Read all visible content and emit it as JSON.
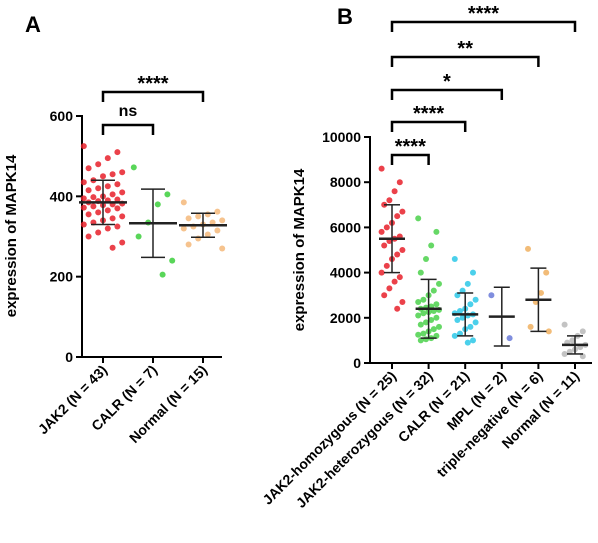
{
  "chart_data": [
    {
      "type": "dotplot",
      "panel_label": "A",
      "y_label": "expression of MAPK14",
      "ylim": [
        0,
        600
      ],
      "yticks": [
        0,
        200,
        400,
        600
      ],
      "series": [
        {
          "name": "JAK2 (N = 43)",
          "color": "#e8202a",
          "mean": 385,
          "sd": 55,
          "values": [
            525,
            510,
            495,
            480,
            470,
            460,
            455,
            450,
            440,
            435,
            430,
            425,
            420,
            415,
            410,
            405,
            400,
            398,
            395,
            392,
            390,
            388,
            385,
            382,
            380,
            378,
            375,
            372,
            370,
            365,
            360,
            355,
            350,
            345,
            340,
            335,
            330,
            325,
            320,
            310,
            300,
            285,
            272
          ]
        },
        {
          "name": "CALR (N = 7)",
          "color": "#3ccf3c",
          "mean": 333,
          "sd": 85,
          "values": [
            472,
            405,
            380,
            335,
            300,
            240,
            205
          ]
        },
        {
          "name": "Normal (N = 15)",
          "color": "#f5b97a",
          "mean": 328,
          "sd": 30,
          "values": [
            385,
            362,
            355,
            350,
            345,
            340,
            335,
            330,
            325,
            320,
            315,
            305,
            295,
            280,
            270
          ]
        }
      ],
      "comparisons": [
        {
          "from": "JAK2 (N = 43)",
          "to": "CALR (N = 7)",
          "label": "ns"
        },
        {
          "from": "JAK2 (N = 43)",
          "to": "Normal (N = 15)",
          "label": "****"
        }
      ]
    },
    {
      "type": "dotplot",
      "panel_label": "B",
      "y_label": "expression of MAPK14",
      "ylim": [
        0,
        10000
      ],
      "yticks": [
        0,
        2000,
        4000,
        6000,
        8000,
        10000
      ],
      "series": [
        {
          "name": "JAK2-homozygous (N = 25)",
          "color": "#e8202a",
          "mean": 5500,
          "sd": 1500,
          "values": [
            8600,
            8000,
            7600,
            7200,
            7000,
            6700,
            6500,
            6200,
            6000,
            5800,
            5600,
            5500,
            5400,
            5200,
            5000,
            4800,
            4600,
            4300,
            4000,
            3800,
            3600,
            3300,
            3000,
            2700,
            2400
          ]
        },
        {
          "name": "JAK2-heterozygous (N = 32)",
          "color": "#4bd14b",
          "mean": 2400,
          "sd": 1300,
          "values": [
            6400,
            5800,
            5200,
            4600,
            4000,
            3500,
            3200,
            3000,
            2800,
            2700,
            2600,
            2500,
            2450,
            2400,
            2350,
            2300,
            2250,
            2200,
            2100,
            2000,
            1900,
            1800,
            1700,
            1600,
            1500,
            1400,
            1300,
            1250,
            1200,
            1100,
            1050,
            1000
          ]
        },
        {
          "name": "CALR (N = 21)",
          "color": "#2bc8e8",
          "mean": 2150,
          "sd": 950,
          "values": [
            4600,
            4000,
            3500,
            3200,
            3000,
            2800,
            2600,
            2400,
            2300,
            2200,
            2150,
            2100,
            2000,
            1900,
            1800,
            1600,
            1500,
            1300,
            1200,
            1000,
            900
          ]
        },
        {
          "name": "MPL (N = 2)",
          "color": "#6a7ad8",
          "mean": 2050,
          "sd": 1300,
          "values": [
            3000,
            1100
          ]
        },
        {
          "name": "triple-negative (N = 6)",
          "color": "#f0b060",
          "mean": 2800,
          "sd": 1400,
          "values": [
            5050,
            4000,
            3100,
            2700,
            1600,
            1400
          ]
        },
        {
          "name": "Normal (N = 11)",
          "color": "#b8b8b8",
          "mean": 800,
          "sd": 400,
          "values": [
            1700,
            1400,
            1200,
            1000,
            900,
            800,
            700,
            600,
            500,
            400,
            300
          ]
        }
      ],
      "comparisons": [
        {
          "from": "JAK2-homozygous (N = 25)",
          "to": "JAK2-heterozygous (N = 32)",
          "label": "****"
        },
        {
          "from": "JAK2-homozygous (N = 25)",
          "to": "CALR (N = 21)",
          "label": "****"
        },
        {
          "from": "JAK2-homozygous (N = 25)",
          "to": "MPL (N = 2)",
          "label": "*"
        },
        {
          "from": "JAK2-homozygous (N = 25)",
          "to": "triple-negative (N = 6)",
          "label": "**"
        },
        {
          "from": "JAK2-homozygous (N = 25)",
          "to": "Normal (N = 11)",
          "label": "****"
        }
      ]
    }
  ]
}
